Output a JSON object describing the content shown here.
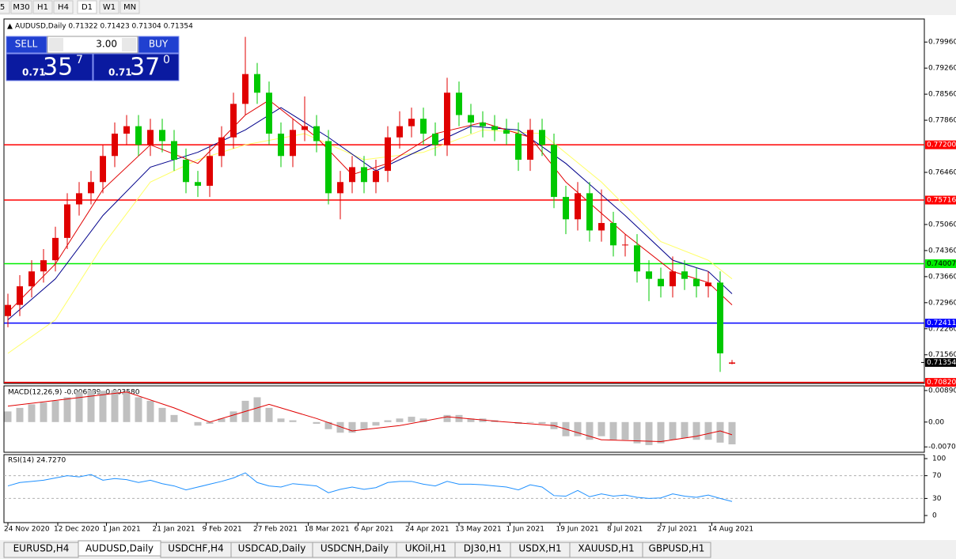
{
  "toolbar": {
    "timeframes": [
      "5",
      "M30",
      "H1",
      "H4",
      "D1",
      "W1",
      "MN"
    ],
    "active": 4
  },
  "trade_panel": {
    "sell": "SELL",
    "lot": "3.00",
    "buy": "BUY",
    "sell_price": {
      "prefix": "0.71",
      "big": "35",
      "small": "7"
    },
    "buy_price": {
      "prefix": "0.71",
      "big": "37",
      "small": "0"
    }
  },
  "chart_data": [
    {
      "type": "candlestick",
      "title": "AUDUSD,Daily 0.71322 0.71423 0.71304 0.71354",
      "up_color": "#e00000",
      "down_color": "#00c800",
      "ohlc": [
        [
          0.726,
          0.732,
          0.723,
          0.729
        ],
        [
          0.729,
          0.737,
          0.726,
          0.734
        ],
        [
          0.734,
          0.741,
          0.731,
          0.738
        ],
        [
          0.738,
          0.744,
          0.735,
          0.741
        ],
        [
          0.741,
          0.75,
          0.738,
          0.747
        ],
        [
          0.747,
          0.759,
          0.744,
          0.756
        ],
        [
          0.756,
          0.762,
          0.753,
          0.759
        ],
        [
          0.759,
          0.765,
          0.756,
          0.762
        ],
        [
          0.762,
          0.772,
          0.759,
          0.769
        ],
        [
          0.769,
          0.778,
          0.766,
          0.775
        ],
        [
          0.775,
          0.78,
          0.772,
          0.777
        ],
        [
          0.777,
          0.78,
          0.769,
          0.772
        ],
        [
          0.772,
          0.779,
          0.769,
          0.776
        ],
        [
          0.776,
          0.779,
          0.77,
          0.773
        ],
        [
          0.773,
          0.776,
          0.765,
          0.768
        ],
        [
          0.768,
          0.771,
          0.759,
          0.762
        ],
        [
          0.762,
          0.765,
          0.758,
          0.761
        ],
        [
          0.761,
          0.772,
          0.758,
          0.769
        ],
        [
          0.769,
          0.777,
          0.766,
          0.774
        ],
        [
          0.774,
          0.786,
          0.771,
          0.783
        ],
        [
          0.783,
          0.801,
          0.78,
          0.791
        ],
        [
          0.791,
          0.794,
          0.783,
          0.786
        ],
        [
          0.786,
          0.789,
          0.772,
          0.775
        ],
        [
          0.775,
          0.778,
          0.766,
          0.769
        ],
        [
          0.769,
          0.779,
          0.766,
          0.776
        ],
        [
          0.776,
          0.785,
          0.773,
          0.777
        ],
        [
          0.777,
          0.78,
          0.77,
          0.773
        ],
        [
          0.773,
          0.776,
          0.756,
          0.759
        ],
        [
          0.759,
          0.765,
          0.752,
          0.762
        ],
        [
          0.762,
          0.769,
          0.759,
          0.766
        ],
        [
          0.766,
          0.769,
          0.759,
          0.762
        ],
        [
          0.762,
          0.768,
          0.759,
          0.765
        ],
        [
          0.765,
          0.777,
          0.762,
          0.774
        ],
        [
          0.774,
          0.781,
          0.771,
          0.777
        ],
        [
          0.777,
          0.782,
          0.774,
          0.779
        ],
        [
          0.779,
          0.782,
          0.772,
          0.775
        ],
        [
          0.775,
          0.778,
          0.769,
          0.772
        ],
        [
          0.772,
          0.79,
          0.769,
          0.786
        ],
        [
          0.786,
          0.789,
          0.777,
          0.78
        ],
        [
          0.78,
          0.783,
          0.775,
          0.778
        ],
        [
          0.778,
          0.781,
          0.774,
          0.777
        ],
        [
          0.777,
          0.78,
          0.773,
          0.776
        ],
        [
          0.776,
          0.779,
          0.772,
          0.775
        ],
        [
          0.775,
          0.778,
          0.765,
          0.768
        ],
        [
          0.768,
          0.779,
          0.765,
          0.776
        ],
        [
          0.776,
          0.779,
          0.769,
          0.772
        ],
        [
          0.772,
          0.775,
          0.755,
          0.758
        ],
        [
          0.758,
          0.761,
          0.748,
          0.752
        ],
        [
          0.752,
          0.762,
          0.749,
          0.759
        ],
        [
          0.759,
          0.762,
          0.746,
          0.749
        ],
        [
          0.749,
          0.76,
          0.746,
          0.751
        ],
        [
          0.751,
          0.754,
          0.742,
          0.745
        ],
        [
          0.745,
          0.748,
          0.742,
          0.7452
        ],
        [
          0.745,
          0.748,
          0.735,
          0.738
        ],
        [
          0.738,
          0.741,
          0.73,
          0.736
        ],
        [
          0.736,
          0.739,
          0.731,
          0.734
        ],
        [
          0.734,
          0.742,
          0.731,
          0.738
        ],
        [
          0.738,
          0.741,
          0.733,
          0.736
        ],
        [
          0.736,
          0.739,
          0.731,
          0.734
        ],
        [
          0.734,
          0.738,
          0.731,
          0.735
        ],
        [
          0.735,
          0.738,
          0.711,
          0.716
        ],
        [
          0.71322,
          0.71423,
          0.71304,
          0.71354
        ]
      ],
      "ylim": [
        0.7079,
        0.8058
      ],
      "yticks": [
        {
          "value": 0.7996,
          "label": "0.79960"
        },
        {
          "value": 0.7926,
          "label": "0.79260"
        },
        {
          "value": 0.7856,
          "label": "0.78560"
        },
        {
          "value": 0.7786,
          "label": "0.77860"
        },
        {
          "value": 0.7646,
          "label": "0.76460"
        },
        {
          "value": 0.7506,
          "label": "0.75060"
        },
        {
          "value": 0.7436,
          "label": "0.74360"
        },
        {
          "value": 0.7366,
          "label": "0.73660"
        },
        {
          "value": 0.7296,
          "label": "0.72960"
        },
        {
          "value": 0.7226,
          "label": "0.72260"
        },
        {
          "value": 0.7156,
          "label": "0.71560"
        }
      ],
      "xticks": [
        {
          "value": 0,
          "label": "24 Nov 2020"
        },
        {
          "value": 4.2,
          "label": "12 Dec 2020"
        },
        {
          "value": 8.3,
          "label": "1 Jan 2021"
        },
        {
          "value": 12.5,
          "label": "21 Jan 2021"
        },
        {
          "value": 16.7,
          "label": "9 Feb 2021"
        },
        {
          "value": 21,
          "label": "27 Feb 2021"
        },
        {
          "value": 25.3,
          "label": "18 Mar 2021"
        },
        {
          "value": 29.5,
          "label": "6 Apr 2021"
        },
        {
          "value": 33.8,
          "label": "24 Apr 2021"
        },
        {
          "value": 38,
          "label": "13 May 2021"
        },
        {
          "value": 42.3,
          "label": "1 Jun 2021"
        },
        {
          "value": 46.5,
          "label": "19 Jun 2021"
        },
        {
          "value": 50.8,
          "label": "8 Jul 2021"
        },
        {
          "value": 55,
          "label": "27 Jul 2021"
        },
        {
          "value": 59.3,
          "label": "14 Aug 2021"
        }
      ],
      "moving_averages": [
        {
          "color": "#ffff66",
          "x": [
            0,
            4,
            8,
            12,
            16,
            20,
            25,
            30,
            35,
            40,
            45,
            50,
            55,
            59,
            61
          ],
          "values": [
            0.716,
            0.725,
            0.745,
            0.762,
            0.768,
            0.772,
            0.775,
            0.768,
            0.77,
            0.776,
            0.775,
            0.762,
            0.746,
            0.741,
            0.736
          ]
        },
        {
          "color": "#00008b",
          "x": [
            0,
            4,
            8,
            12,
            16,
            20,
            23,
            27,
            31,
            35,
            39,
            43,
            47,
            52,
            56,
            59,
            61
          ],
          "values": [
            0.725,
            0.736,
            0.753,
            0.766,
            0.77,
            0.776,
            0.782,
            0.774,
            0.765,
            0.771,
            0.777,
            0.776,
            0.767,
            0.753,
            0.741,
            0.738,
            0.732
          ]
        },
        {
          "color": "#e00000",
          "x": [
            0,
            4,
            8,
            12,
            16,
            20,
            22,
            26,
            29,
            32,
            36,
            40,
            44,
            47,
            52,
            56,
            59,
            61
          ],
          "values": [
            0.727,
            0.74,
            0.76,
            0.772,
            0.767,
            0.78,
            0.784,
            0.774,
            0.764,
            0.767,
            0.775,
            0.778,
            0.774,
            0.762,
            0.748,
            0.738,
            0.735,
            0.729
          ]
        }
      ],
      "levels": [
        {
          "value": 0.772,
          "label": "0.77200",
          "color": "#ff0000"
        },
        {
          "value": 0.75716,
          "label": "0.75716",
          "color": "#ff0000"
        },
        {
          "value": 0.74007,
          "label": "0.74007",
          "color": "#00ee00"
        },
        {
          "value": 0.72411,
          "label": "0.72411",
          "color": "#0000ff"
        },
        {
          "value": 0.7082,
          "label": "0.70820",
          "color": "#ff0000"
        }
      ],
      "last_price": {
        "value": 0.71354,
        "label": "0.71354"
      }
    },
    {
      "type": "bar",
      "title": "MACD(12,26,9) -0.006289 -0.003580",
      "color": "#c0c0c0",
      "values": [
        0.003,
        0.004,
        0.005,
        0.0055,
        0.006,
        0.007,
        0.0085,
        0.009,
        0.0088,
        0.009,
        0.0085,
        0.007,
        0.006,
        0.004,
        0.002,
        0,
        -0.001,
        -0.0005,
        0.001,
        0.003,
        0.006,
        0.007,
        0.004,
        0.001,
        0.0005,
        0,
        -0.0005,
        -0.002,
        -0.003,
        -0.003,
        -0.002,
        -0.001,
        0.0005,
        0.001,
        0.0015,
        0.001,
        0,
        0.002,
        0.002,
        0.001,
        0.001,
        0.0005,
        0,
        -0.0005,
        -0.0002,
        -0.0005,
        -0.002,
        -0.004,
        -0.004,
        -0.005,
        -0.004,
        -0.005,
        -0.005,
        -0.006,
        -0.0065,
        -0.006,
        -0.005,
        -0.0045,
        -0.005,
        -0.005,
        -0.0058,
        -0.006289
      ],
      "signal": {
        "color": "#e00000",
        "x": [
          0,
          5,
          10,
          14,
          17,
          20,
          22,
          26,
          29,
          33,
          37,
          42,
          46,
          50,
          55,
          58,
          60,
          61
        ],
        "values": [
          0.0045,
          0.0065,
          0.0085,
          0.004,
          0,
          0.003,
          0.005,
          0.001,
          -0.0025,
          -0.001,
          0.0015,
          0,
          -0.001,
          -0.005,
          -0.0055,
          -0.004,
          -0.0025,
          -0.00358
        ]
      },
      "ylim": [
        -0.0083,
        0.01
      ],
      "yticks": [
        {
          "value": 0.008904,
          "label": "0.008904"
        },
        {
          "value": 0,
          "label": "0.00"
        },
        {
          "value": -0.00701,
          "label": "-0.00701"
        }
      ]
    },
    {
      "type": "line",
      "title": "RSI(14) 24.7270",
      "color": "#1e90ff",
      "values": [
        52,
        58,
        60,
        62,
        66,
        70,
        68,
        72,
        62,
        65,
        63,
        58,
        62,
        56,
        52,
        45,
        50,
        55,
        60,
        66,
        75,
        58,
        52,
        50,
        56,
        54,
        52,
        40,
        46,
        50,
        46,
        49,
        58,
        60,
        60,
        55,
        52,
        60,
        55,
        55,
        54,
        52,
        50,
        45,
        54,
        50,
        35,
        34,
        44,
        33,
        38,
        34,
        36,
        32,
        30,
        31,
        38,
        34,
        32,
        36,
        30,
        24.727
      ],
      "ylim": [
        -12.5,
        107
      ],
      "yticks": [
        100,
        70,
        30,
        0
      ],
      "levels": [
        70,
        30
      ]
    }
  ],
  "tabs": {
    "items": [
      "EURUSD,H4",
      "AUDUSD,Daily",
      "USDCHF,H4",
      "USDCAD,Daily",
      "USDCNH,Daily",
      "UKOil,H1",
      "DJ30,H1",
      "USDX,H1",
      "XAUUSD,H1",
      "GBPUSD,H1"
    ],
    "active": 1
  }
}
